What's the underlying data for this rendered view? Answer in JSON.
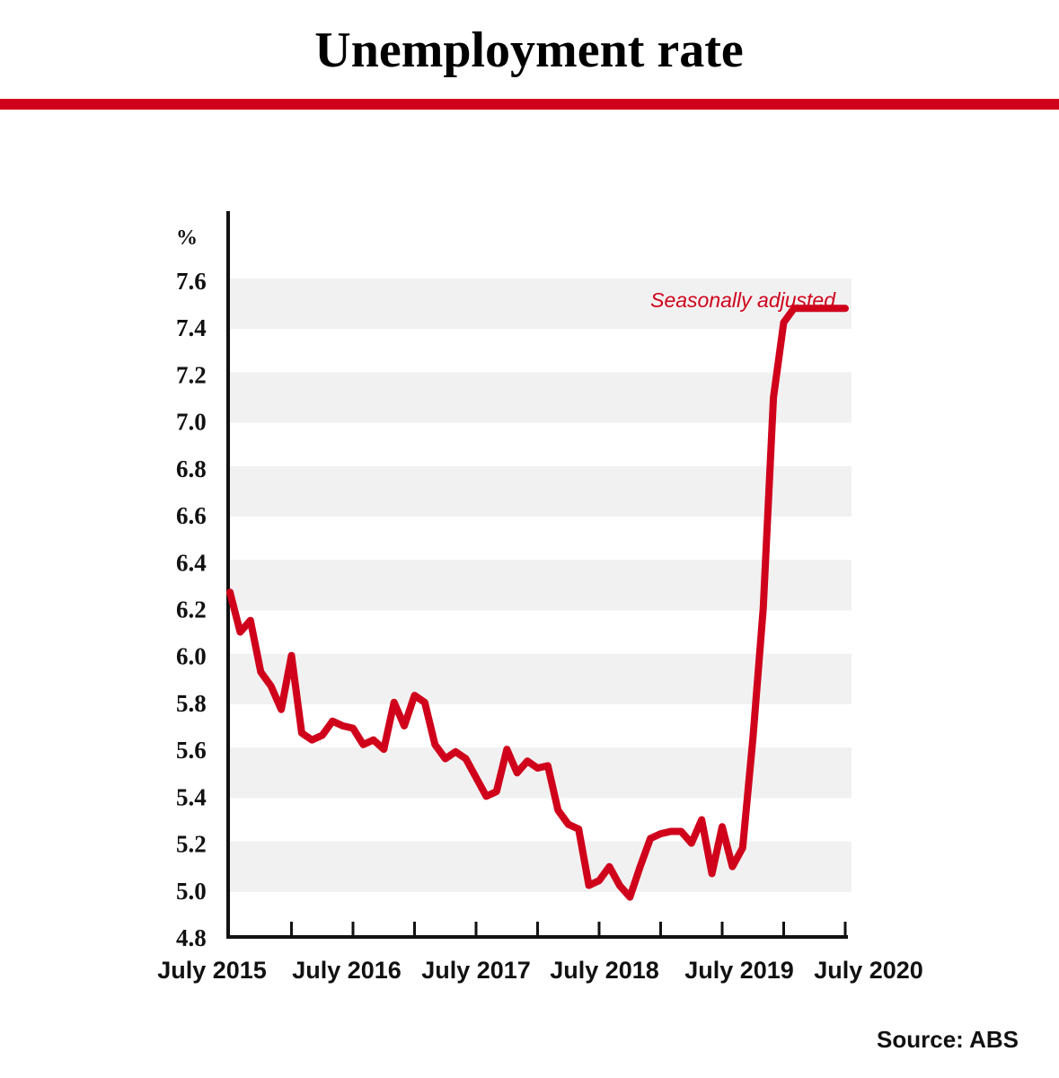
{
  "colors": {
    "accent": "#d0021b",
    "band": "#f1f1f1",
    "axis": "#111111"
  },
  "chart_data": {
    "type": "line",
    "title": "Unemployment rate",
    "ylabel": "%",
    "ylim": [
      4.8,
      7.6
    ],
    "yticks": [
      "4.8",
      "5.0",
      "5.2",
      "5.4",
      "5.6",
      "5.8",
      "6.0",
      "6.2",
      "6.4",
      "6.6",
      "6.8",
      "7.0",
      "7.2",
      "7.4",
      "7.6"
    ],
    "xticks": [
      "July 2015",
      "July 2016",
      "July 2017",
      "July 2018",
      "July 2019",
      "July 2020"
    ],
    "grid": "alternating horizontal bands",
    "annotation": "Seasonally adjusted",
    "source": "Source: ABS",
    "series": [
      {
        "x": [
          "2015-07",
          "2015-08",
          "2015-09",
          "2015-10",
          "2015-11",
          "2015-12",
          "2016-01",
          "2016-02",
          "2016-03",
          "2016-04",
          "2016-05",
          "2016-06",
          "2016-07",
          "2016-08",
          "2016-09",
          "2016-10",
          "2016-11",
          "2016-12",
          "2017-01",
          "2017-02",
          "2017-03",
          "2017-04",
          "2017-05",
          "2017-06",
          "2017-07",
          "2017-08",
          "2017-09",
          "2017-10",
          "2017-11",
          "2017-12",
          "2018-01",
          "2018-02",
          "2018-03",
          "2018-04",
          "2018-05",
          "2018-06",
          "2018-07",
          "2018-08",
          "2018-09",
          "2018-10",
          "2018-11",
          "2018-12",
          "2019-01",
          "2019-02",
          "2019-03",
          "2019-04",
          "2019-05",
          "2019-06",
          "2019-07",
          "2019-08",
          "2019-09",
          "2019-10",
          "2019-11",
          "2019-12",
          "2020-01",
          "2020-02",
          "2020-03",
          "2020-04",
          "2020-05",
          "2020-06",
          "2020-07"
        ],
        "y": [
          6.27,
          6.1,
          6.15,
          5.93,
          5.87,
          5.77,
          6.0,
          5.67,
          5.64,
          5.66,
          5.72,
          5.7,
          5.69,
          5.62,
          5.64,
          5.6,
          5.8,
          5.7,
          5.83,
          5.8,
          5.62,
          5.56,
          5.59,
          5.56,
          5.48,
          5.4,
          5.42,
          5.6,
          5.5,
          5.55,
          5.52,
          5.53,
          5.34,
          5.28,
          5.26,
          5.02,
          5.04,
          5.1,
          5.02,
          4.97,
          5.1,
          5.22,
          5.24,
          5.25,
          5.25,
          5.2,
          5.3,
          5.07,
          5.27,
          5.1,
          5.18,
          5.65,
          6.2,
          7.1,
          7.42,
          7.48,
          7.48,
          7.48,
          7.48,
          7.48,
          7.48
        ]
      }
    ]
  }
}
